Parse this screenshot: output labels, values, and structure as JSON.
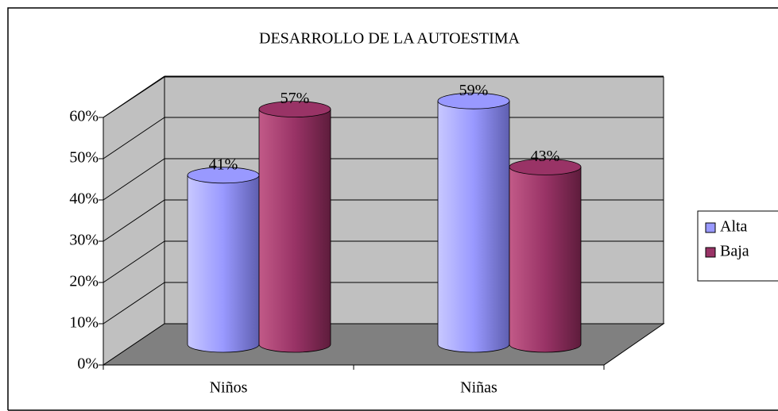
{
  "chart_data": {
    "type": "bar3d",
    "title": "DESARROLLO DE LA AUTOESTIMA",
    "categories": [
      "Niños",
      "Niñas"
    ],
    "series": [
      {
        "name": "Alta",
        "color": "#9999ff",
        "values": [
          41,
          59
        ],
        "value_labels": [
          "41%",
          "59%"
        ]
      },
      {
        "name": "Baja",
        "color": "#993366",
        "values": [
          57,
          43
        ],
        "value_labels": [
          "57%",
          "43%"
        ]
      }
    ],
    "ylim": [
      0,
      60
    ],
    "yticks": [
      {
        "value": 0,
        "label": "0%"
      },
      {
        "value": 10,
        "label": "10%"
      },
      {
        "value": 20,
        "label": "20%"
      },
      {
        "value": 30,
        "label": "30%"
      },
      {
        "value": 40,
        "label": "40%"
      },
      {
        "value": 50,
        "label": "50%"
      },
      {
        "value": 60,
        "label": "60%"
      }
    ],
    "grid": true,
    "legend": "right"
  }
}
